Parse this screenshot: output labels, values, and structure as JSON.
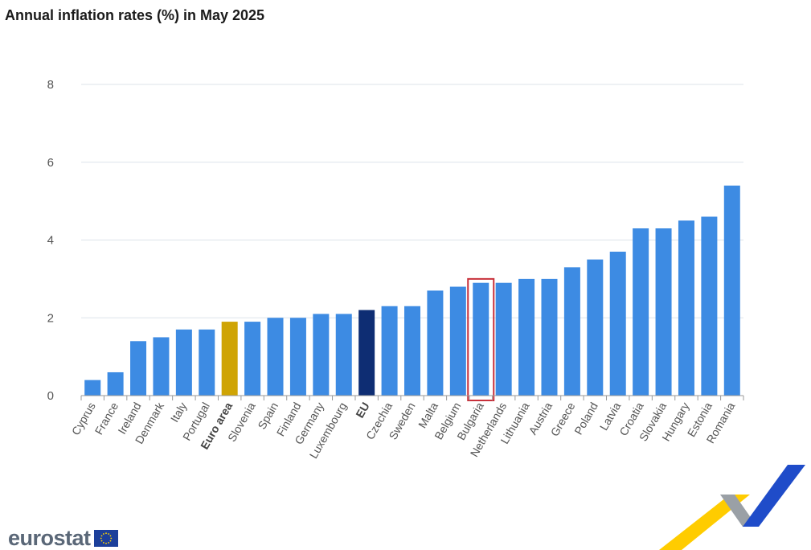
{
  "title": "Annual inflation rates (%) in May 2025",
  "chart_data": {
    "type": "bar",
    "title": "Annual inflation rates (%) in May 2025",
    "xlabel": "",
    "ylabel": "",
    "ylim": [
      0,
      8
    ],
    "yticks": [
      "0",
      "2",
      "4",
      "6",
      "8"
    ],
    "grid": true,
    "categories": [
      "Cyprus",
      "France",
      "Ireland",
      "Denmark",
      "Italy",
      "Portugal",
      "Euro area",
      "Slovenia",
      "Spain",
      "Finland",
      "Germany",
      "Luxembourg",
      "EU",
      "Czechia",
      "Sweden",
      "Malta",
      "Belgium",
      "Bulgaria",
      "Netherlands",
      "Lithuania",
      "Austria",
      "Greece",
      "Poland",
      "Latvia",
      "Croatia",
      "Slovakia",
      "Hungary",
      "Estonia",
      "Romania"
    ],
    "values": [
      0.4,
      0.6,
      1.4,
      1.5,
      1.7,
      1.7,
      1.9,
      1.9,
      2.0,
      2.0,
      2.1,
      2.1,
      2.2,
      2.3,
      2.3,
      2.7,
      2.8,
      2.9,
      2.9,
      3.0,
      3.0,
      3.3,
      3.5,
      3.7,
      4.3,
      4.3,
      4.5,
      4.6,
      5.4
    ],
    "bold_categories": [
      "Euro area",
      "EU"
    ],
    "highlighted_category": "Bulgaria",
    "colors": {
      "default": "#3d8be3",
      "Euro area": "#cfa404",
      "EU": "#0e2d73",
      "highlight_box": "#c8303a",
      "grid": "#dde3ea",
      "axis": "#999999"
    }
  },
  "logo": {
    "text": "eurostat",
    "flag_icon": "eu-flag-icon",
    "flag_color": "#1c3f9a",
    "star_color": "#ffd400"
  }
}
